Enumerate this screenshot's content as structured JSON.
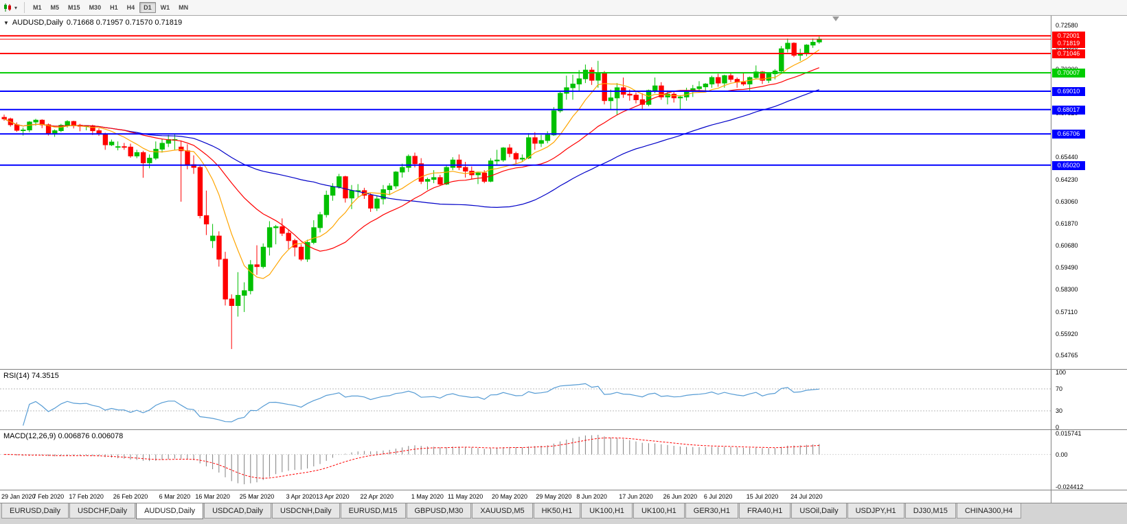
{
  "icons": {
    "dropdown_caret": "▾",
    "title_caret": "▼"
  },
  "toolbar": {
    "timeframes": [
      "M1",
      "M5",
      "M15",
      "M30",
      "H1",
      "H4",
      "D1",
      "W1",
      "MN"
    ],
    "active_timeframe": "D1"
  },
  "main": {
    "title": "AUDUSD,Daily",
    "ohlc": "0.71668 0.71957 0.71570 0.71819"
  },
  "chart_data": {
    "type": "candlestick",
    "symbol": "AUDUSD",
    "timeframe": "Daily",
    "up_color": "#00C000",
    "down_color": "#FF0000",
    "ohlc": [
      [
        0.676,
        0.6775,
        0.6742,
        0.6752
      ],
      [
        0.6752,
        0.6758,
        0.671,
        0.672
      ],
      [
        0.672,
        0.6733,
        0.6682,
        0.669
      ],
      [
        0.669,
        0.6705,
        0.6662,
        0.6692
      ],
      [
        0.6692,
        0.674,
        0.668,
        0.6735
      ],
      [
        0.6735,
        0.6752,
        0.6715,
        0.6745
      ],
      [
        0.6745,
        0.675,
        0.6702,
        0.672
      ],
      [
        0.672,
        0.6727,
        0.6662,
        0.667
      ],
      [
        0.667,
        0.6695,
        0.6655,
        0.6688
      ],
      [
        0.6688,
        0.6725,
        0.668,
        0.6717
      ],
      [
        0.6717,
        0.6745,
        0.6705,
        0.6738
      ],
      [
        0.6738,
        0.6742,
        0.67,
        0.6718
      ],
      [
        0.6718,
        0.6725,
        0.6685,
        0.6712
      ],
      [
        0.6712,
        0.6718,
        0.669,
        0.6715
      ],
      [
        0.6715,
        0.672,
        0.6665,
        0.6688
      ],
      [
        0.6688,
        0.67,
        0.666,
        0.667
      ],
      [
        0.667,
        0.6677,
        0.6585,
        0.6612
      ],
      [
        0.6612,
        0.664,
        0.6605,
        0.6627
      ],
      [
        0.66,
        0.663,
        0.6582,
        0.6602
      ],
      [
        0.6602,
        0.6622,
        0.6585,
        0.66
      ],
      [
        0.66,
        0.6618,
        0.6542,
        0.6552
      ],
      [
        0.6552,
        0.6585,
        0.654,
        0.657
      ],
      [
        0.657,
        0.658,
        0.6434,
        0.6515
      ],
      [
        0.6515,
        0.656,
        0.6485,
        0.654
      ],
      [
        0.654,
        0.663,
        0.653,
        0.6588
      ],
      [
        0.6588,
        0.6645,
        0.657,
        0.662
      ],
      [
        0.662,
        0.6665,
        0.66,
        0.664
      ],
      [
        0.664,
        0.667,
        0.6585,
        0.664
      ],
      [
        0.66,
        0.6635,
        0.6305,
        0.658
      ],
      [
        0.658,
        0.6615,
        0.648,
        0.6505
      ],
      [
        0.6505,
        0.6555,
        0.6455,
        0.649
      ],
      [
        0.649,
        0.65,
        0.6215,
        0.623
      ],
      [
        0.623,
        0.6365,
        0.6125,
        0.6185
      ],
      [
        0.6095,
        0.6185,
        0.6055,
        0.612
      ],
      [
        0.612,
        0.6145,
        0.5955,
        0.5995
      ],
      [
        0.5995,
        0.6035,
        0.5745,
        0.578
      ],
      [
        0.578,
        0.5805,
        0.551,
        0.5745
      ],
      [
        0.5745,
        0.5925,
        0.5685,
        0.58
      ],
      [
        0.58,
        0.587,
        0.571,
        0.5825
      ],
      [
        0.5825,
        0.599,
        0.5805,
        0.5965
      ],
      [
        0.5965,
        0.607,
        0.591,
        0.5955
      ],
      [
        0.5955,
        0.608,
        0.5945,
        0.606
      ],
      [
        0.606,
        0.62,
        0.6015,
        0.6165
      ],
      [
        0.6165,
        0.618,
        0.6075,
        0.617
      ],
      [
        0.617,
        0.6215,
        0.612,
        0.6135
      ],
      [
        0.6135,
        0.6155,
        0.605,
        0.6095
      ],
      [
        0.6095,
        0.6105,
        0.601,
        0.606
      ],
      [
        0.606,
        0.6075,
        0.5985,
        0.5995
      ],
      [
        0.5995,
        0.61,
        0.598,
        0.6085
      ],
      [
        0.6085,
        0.6205,
        0.6075,
        0.6165
      ],
      [
        0.6165,
        0.625,
        0.614,
        0.6235
      ],
      [
        0.6235,
        0.6365,
        0.622,
        0.634
      ],
      [
        0.634,
        0.6405,
        0.631,
        0.6385
      ],
      [
        0.6385,
        0.6455,
        0.6375,
        0.644
      ],
      [
        0.644,
        0.6445,
        0.63,
        0.6325
      ],
      [
        0.6325,
        0.6395,
        0.6265,
        0.6365
      ],
      [
        0.6365,
        0.64,
        0.633,
        0.6365
      ],
      [
        0.6365,
        0.638,
        0.632,
        0.634
      ],
      [
        0.634,
        0.635,
        0.625,
        0.627
      ],
      [
        0.627,
        0.6335,
        0.6255,
        0.632
      ],
      [
        0.632,
        0.6395,
        0.629,
        0.637
      ],
      [
        0.637,
        0.6405,
        0.634,
        0.639
      ],
      [
        0.639,
        0.647,
        0.6375,
        0.6465
      ],
      [
        0.6465,
        0.651,
        0.6435,
        0.649
      ],
      [
        0.649,
        0.656,
        0.6465,
        0.655
      ],
      [
        0.655,
        0.657,
        0.649,
        0.651
      ],
      [
        0.651,
        0.654,
        0.64,
        0.6415
      ],
      [
        0.6415,
        0.6435,
        0.637,
        0.6425
      ],
      [
        0.6425,
        0.6475,
        0.6405,
        0.6435
      ],
      [
        0.6435,
        0.645,
        0.639,
        0.64
      ],
      [
        0.64,
        0.65,
        0.6395,
        0.649
      ],
      [
        0.649,
        0.6545,
        0.6475,
        0.653
      ],
      [
        0.653,
        0.656,
        0.6475,
        0.649
      ],
      [
        0.649,
        0.652,
        0.6435,
        0.647
      ],
      [
        0.647,
        0.6495,
        0.6425,
        0.645
      ],
      [
        0.645,
        0.6465,
        0.64,
        0.646
      ],
      [
        0.646,
        0.6475,
        0.6405,
        0.6415
      ],
      [
        0.6415,
        0.654,
        0.641,
        0.6525
      ],
      [
        0.6525,
        0.6585,
        0.6505,
        0.653
      ],
      [
        0.653,
        0.66,
        0.652,
        0.6595
      ],
      [
        0.6595,
        0.6615,
        0.6545,
        0.6565
      ],
      [
        0.6565,
        0.6575,
        0.651,
        0.6535
      ],
      [
        0.6535,
        0.656,
        0.652,
        0.654
      ],
      [
        0.654,
        0.6675,
        0.6535,
        0.665
      ],
      [
        0.665,
        0.668,
        0.6585,
        0.662
      ],
      [
        0.662,
        0.6665,
        0.66,
        0.6635
      ],
      [
        0.6635,
        0.6685,
        0.662,
        0.6665
      ],
      [
        0.6665,
        0.6815,
        0.666,
        0.6795
      ],
      [
        0.6795,
        0.69,
        0.6785,
        0.689
      ],
      [
        0.689,
        0.6985,
        0.6855,
        0.692
      ],
      [
        0.692,
        0.699,
        0.6855,
        0.694
      ],
      [
        0.694,
        0.7015,
        0.69,
        0.6968
      ],
      [
        0.6968,
        0.7045,
        0.6945,
        0.7015
      ],
      [
        0.7015,
        0.703,
        0.6935,
        0.696
      ],
      [
        0.696,
        0.7065,
        0.692,
        0.7
      ],
      [
        0.7,
        0.701,
        0.683,
        0.685
      ],
      [
        0.685,
        0.691,
        0.68,
        0.6865
      ],
      [
        0.6865,
        0.6945,
        0.6775,
        0.692
      ],
      [
        0.692,
        0.6975,
        0.6865,
        0.6885
      ],
      [
        0.6885,
        0.691,
        0.685,
        0.688
      ],
      [
        0.688,
        0.6895,
        0.6835,
        0.6855
      ],
      [
        0.6855,
        0.689,
        0.68,
        0.683
      ],
      [
        0.683,
        0.691,
        0.682,
        0.6905
      ],
      [
        0.6905,
        0.6975,
        0.689,
        0.693
      ],
      [
        0.693,
        0.695,
        0.6855,
        0.687
      ],
      [
        0.687,
        0.6905,
        0.683,
        0.6885
      ],
      [
        0.6885,
        0.69,
        0.684,
        0.6865
      ],
      [
        0.6865,
        0.688,
        0.6805,
        0.687
      ],
      [
        0.687,
        0.692,
        0.685,
        0.69
      ],
      [
        0.69,
        0.6935,
        0.687,
        0.6915
      ],
      [
        0.6915,
        0.6955,
        0.69,
        0.6925
      ],
      [
        0.6925,
        0.6945,
        0.6905,
        0.694
      ],
      [
        0.694,
        0.6985,
        0.692,
        0.6975
      ],
      [
        0.6975,
        0.6995,
        0.6925,
        0.6945
      ],
      [
        0.6945,
        0.699,
        0.692,
        0.6985
      ],
      [
        0.6985,
        0.7,
        0.695,
        0.6965
      ],
      [
        0.6965,
        0.6975,
        0.692,
        0.695
      ],
      [
        0.695,
        0.7,
        0.693,
        0.694
      ],
      [
        0.694,
        0.698,
        0.6905,
        0.6975
      ],
      [
        0.6975,
        0.704,
        0.697,
        0.7005
      ],
      [
        0.7005,
        0.701,
        0.694,
        0.696
      ],
      [
        0.696,
        0.7,
        0.6945,
        0.6995
      ],
      [
        0.6995,
        0.702,
        0.6965,
        0.701
      ],
      [
        0.701,
        0.7145,
        0.7,
        0.713
      ],
      [
        0.713,
        0.7185,
        0.711,
        0.716
      ],
      [
        0.716,
        0.7165,
        0.7085,
        0.7095
      ],
      [
        0.7095,
        0.713,
        0.7065,
        0.7105
      ],
      [
        0.7105,
        0.7155,
        0.709,
        0.715
      ],
      [
        0.715,
        0.7185,
        0.7135,
        0.7165
      ],
      [
        0.71668,
        0.71957,
        0.7157,
        0.71819
      ]
    ],
    "x_tick_indices": [
      0,
      7,
      13,
      20,
      27,
      33,
      40,
      47,
      52,
      59,
      67,
      73,
      80,
      87,
      93,
      100,
      107,
      113,
      120,
      127
    ],
    "x_tick_labels": [
      "29 Jan 2020",
      "7 Feb 2020",
      "17 Feb 2020",
      "26 Feb 2020",
      "6 Mar 2020",
      "16 Mar 2020",
      "25 Mar 2020",
      "3 Apr 2020",
      "13 Apr 2020",
      "22 Apr 2020",
      "1 May 2020",
      "11 May 2020",
      "20 May 2020",
      "29 May 2020",
      "8 Jun 2020",
      "17 Jun 2020",
      "26 Jun 2020",
      "6 Jul 2020",
      "15 Jul 2020",
      "24 Jul 2020"
    ],
    "y_ticks": [
      0.7258,
      0.7139,
      0.702,
      0.6901,
      0.6782,
      0.6663,
      0.6544,
      0.6423,
      0.6306,
      0.6187,
      0.6068,
      0.5949,
      0.583,
      0.5711,
      0.5592,
      0.54765
    ],
    "levels": [
      {
        "value": 0.72001,
        "label": "0.72001",
        "color": "#FF0000",
        "width": 2
      },
      {
        "value": 0.71046,
        "label": "0.71046",
        "color": "#FF0000",
        "width": 2
      },
      {
        "value": 0.70007,
        "label": "0.70007",
        "color": "#00CC00",
        "width": 2
      },
      {
        "value": 0.6901,
        "label": "0.69010",
        "color": "#0000FF",
        "width": 2
      },
      {
        "value": 0.68017,
        "label": "0.68017",
        "color": "#0000FF",
        "width": 2
      },
      {
        "value": 0.66706,
        "label": "0.66706",
        "color": "#0000FF",
        "width": 2
      },
      {
        "value": 0.6502,
        "label": "0.65020",
        "color": "#0000FF",
        "width": 2
      }
    ],
    "bid": {
      "value": 0.71819,
      "label": "0.71819",
      "color": "#FF0000"
    },
    "moving_averages": [
      {
        "period": 8,
        "color": "#FFA500"
      },
      {
        "period": 20,
        "color": "#FF0000"
      },
      {
        "period": 50,
        "color": "#0000C8"
      }
    ],
    "rsi": {
      "label": "RSI(14) 74.3515",
      "period": 14,
      "color": "#559BD4",
      "levels": [
        100,
        70,
        30,
        0
      ]
    },
    "macd": {
      "label": "MACD(12,26,9) 0.006876 0.006078",
      "fast": 12,
      "slow": 26,
      "signal_period": 9,
      "scale_max": 0.015741,
      "scale_min": -0.024412,
      "axis_labels": [
        "0.015741",
        "0.00",
        "-0.024412"
      ],
      "histogram_color": "#808080",
      "signal_color": "#FF0000"
    }
  },
  "tabs": {
    "items": [
      "EURUSD,Daily",
      "USDCHF,Daily",
      "AUDUSD,Daily",
      "USDCAD,Daily",
      "USDCNH,Daily",
      "EURUSD,M15",
      "GBPUSD,M30",
      "XAUUSD,M5",
      "HK50,H1",
      "UK100,H1",
      "UK100,H1",
      "GER30,H1",
      "FRA40,H1",
      "USOil,Daily",
      "USDJPY,H1",
      "DJ30,M15",
      "CHINA300,H4"
    ],
    "active_index": 2
  }
}
